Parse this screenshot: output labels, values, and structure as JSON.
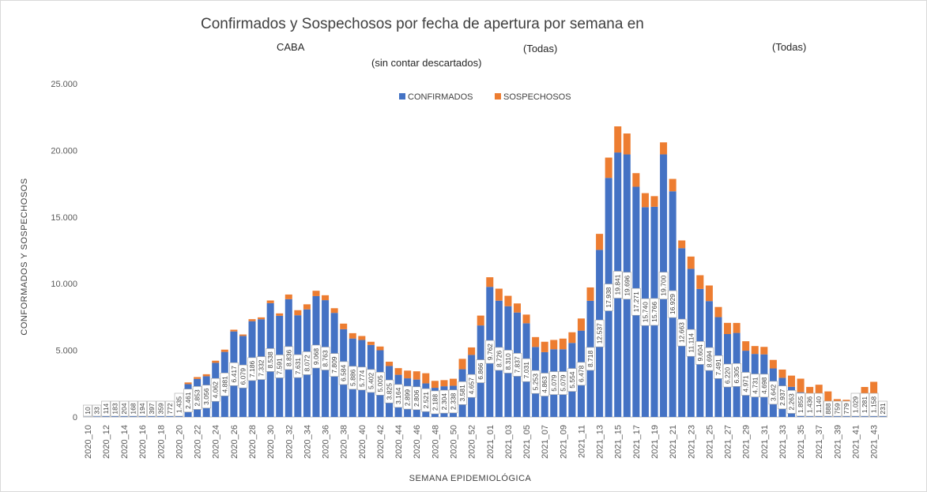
{
  "header": {
    "title": "Confirmados y Sospechosos por fecha de apertura por semana en",
    "region": "CABA",
    "filter1": "(Todas)",
    "filter2": "(Todas)",
    "note": "(sin contar descartados)"
  },
  "chart_data": {
    "type": "bar",
    "stacked": true,
    "xlabel": "SEMANA EPIDEMIOLÓGICA",
    "ylabel": "CONFORMADOS Y SOSPECHOSOS",
    "ylim": [
      0,
      25000
    ],
    "yticks": [
      "0",
      "5.000",
      "10.000",
      "15.000",
      "20.000",
      "25.000"
    ],
    "legend_position": "top-center",
    "colors": {
      "confirmados": "#4472c4",
      "sospechosos": "#ed7d31"
    },
    "categories": [
      "2020_10",
      "2020_11",
      "2020_12",
      "2020_13",
      "2020_14",
      "2020_15",
      "2020_16",
      "2020_17",
      "2020_18",
      "2020_19",
      "2020_20",
      "2020_21",
      "2020_22",
      "2020_23",
      "2020_24",
      "2020_25",
      "2020_26",
      "2020_27",
      "2020_28",
      "2020_29",
      "2020_30",
      "2020_31",
      "2020_32",
      "2020_33",
      "2020_34",
      "2020_35",
      "2020_36",
      "2020_37",
      "2020_38",
      "2020_39",
      "2020_40",
      "2020_41",
      "2020_42",
      "2020_43",
      "2020_44",
      "2020_45",
      "2020_46",
      "2020_47",
      "2020_48",
      "2020_49",
      "2020_50",
      "2020_51",
      "2020_52",
      "2020_53",
      "2021_01",
      "2021_02",
      "2021_03",
      "2021_04",
      "2021_05",
      "2021_06",
      "2021_07",
      "2021_08",
      "2021_09",
      "2021_10",
      "2021_11",
      "2021_12",
      "2021_13",
      "2021_14",
      "2021_15",
      "2021_16",
      "2021_17",
      "2021_18",
      "2021_19",
      "2021_20",
      "2021_21",
      "2021_22",
      "2021_23",
      "2021_24",
      "2021_25",
      "2021_26",
      "2021_27",
      "2021_28",
      "2021_29",
      "2021_30",
      "2021_31",
      "2021_32",
      "2021_33",
      "2021_34",
      "2021_35",
      "2021_36",
      "2021_37",
      "2021_38",
      "2021_39",
      "2021_40",
      "2021_41",
      "2021_42",
      "2021_43",
      "2021_44"
    ],
    "x_tick_labels": [
      "2020_10",
      "2020_12",
      "2020_14",
      "2020_16",
      "2020_18",
      "2020_20",
      "2020_22",
      "2020_24",
      "2020_26",
      "2020_28",
      "2020_30",
      "2020_32",
      "2020_34",
      "2020_36",
      "2020_38",
      "2020_40",
      "2020_42",
      "2020_44",
      "2020_46",
      "2020_48",
      "2020_50",
      "2020_52",
      "2021_01",
      "2021_03",
      "2021_05",
      "2021_07",
      "2021_09",
      "2021_11",
      "2021_13",
      "2021_15",
      "2021_17",
      "2021_19",
      "2021_21",
      "2021_23",
      "2021_25",
      "2021_27",
      "2021_29",
      "2021_31",
      "2021_33",
      "2021_35",
      "2021_37",
      "2021_39",
      "2021_41",
      "2021_43"
    ],
    "series": [
      {
        "name": "CONFIRMADOS",
        "values": [
          10,
          33,
          114,
          183,
          204,
          168,
          194,
          397,
          359,
          772,
          1435,
          2461,
          2853,
          3056,
          4062,
          4881,
          6417,
          6079,
          7186,
          7332,
          8538,
          7591,
          8836,
          7631,
          8072,
          9068,
          8763,
          7809,
          6584,
          5886,
          5774,
          5402,
          5005,
          3825,
          3164,
          2899,
          2806,
          2521,
          2188,
          2304,
          2338,
          3581,
          4657,
          6866,
          9762,
          8726,
          8310,
          7837,
          7031,
          5253,
          4863,
          5079,
          5079,
          5554,
          6478,
          8718,
          12537,
          17938,
          19841,
          19696,
          17271,
          15740,
          15766,
          19700,
          16929,
          12663,
          11114,
          9604,
          8694,
          7491,
          6220,
          6305,
          4971,
          4731,
          4698,
          3642,
          2937,
          2263,
          1855,
          1436,
          1140,
          888,
          759,
          779,
          1029,
          1281,
          1158,
          231
        ],
        "labels": [
          "10",
          "33",
          "114",
          "183",
          "204",
          "168",
          "194",
          "397",
          "359",
          "772",
          "1.435",
          "2.461",
          "2.853",
          "3.056",
          "4.062",
          "4.881",
          "6.417",
          "6.079",
          "7.186",
          "7.332",
          "8.538",
          "7.591",
          "8.836",
          "7.631",
          "8.072",
          "9.068",
          "8.763",
          "7.809",
          "6.584",
          "5.886",
          "5.774",
          "5.402",
          "5.005",
          "3.825",
          "3.164",
          "2.899",
          "2.806",
          "2.521",
          "2.188",
          "2.304",
          "2.338",
          "3.581",
          "4.657",
          "6.866",
          "9.762",
          "8.726",
          "8.310",
          "7.837",
          "7.031",
          "5.253",
          "4.863",
          "5.079",
          "5.079",
          "5.554",
          "6.478",
          "8.718",
          "12.537",
          "17.938",
          "19.841",
          "19.696",
          "17.271",
          "15.740",
          "15.766",
          "19.700",
          "16.929",
          "12.663",
          "11.114",
          "9.604",
          "8.694",
          "7.491",
          "6.220",
          "6.305",
          "4.971",
          "4.731",
          "4.698",
          "3.642",
          "2.937",
          "2.263",
          "1.855",
          "1.436",
          "1.140",
          "888",
          "759",
          "779",
          "1.029",
          "1.281",
          "1.158",
          "231"
        ]
      },
      {
        "name": "SOSPECHOSOS",
        "values": [
          0,
          0,
          0,
          0,
          0,
          0,
          0,
          0,
          0,
          0,
          0,
          130,
          140,
          150,
          160,
          170,
          130,
          110,
          150,
          140,
          200,
          180,
          350,
          380,
          380,
          400,
          370,
          350,
          420,
          400,
          300,
          240,
          280,
          320,
          500,
          580,
          620,
          760,
          520,
          460,
          530,
          780,
          560,
          740,
          720,
          900,
          780,
          680,
          650,
          740,
          780,
          700,
          800,
          800,
          910,
          1000,
          1200,
          1520,
          1960,
          1570,
          1020,
          1050,
          800,
          900,
          930,
          580,
          920,
          1030,
          1170,
          760,
          840,
          750,
          710,
          590,
          560,
          640,
          620,
          840,
          1020,
          820,
          1280,
          1030,
          580,
          510,
          560,
          970,
          1480,
          390
        ]
      }
    ]
  }
}
